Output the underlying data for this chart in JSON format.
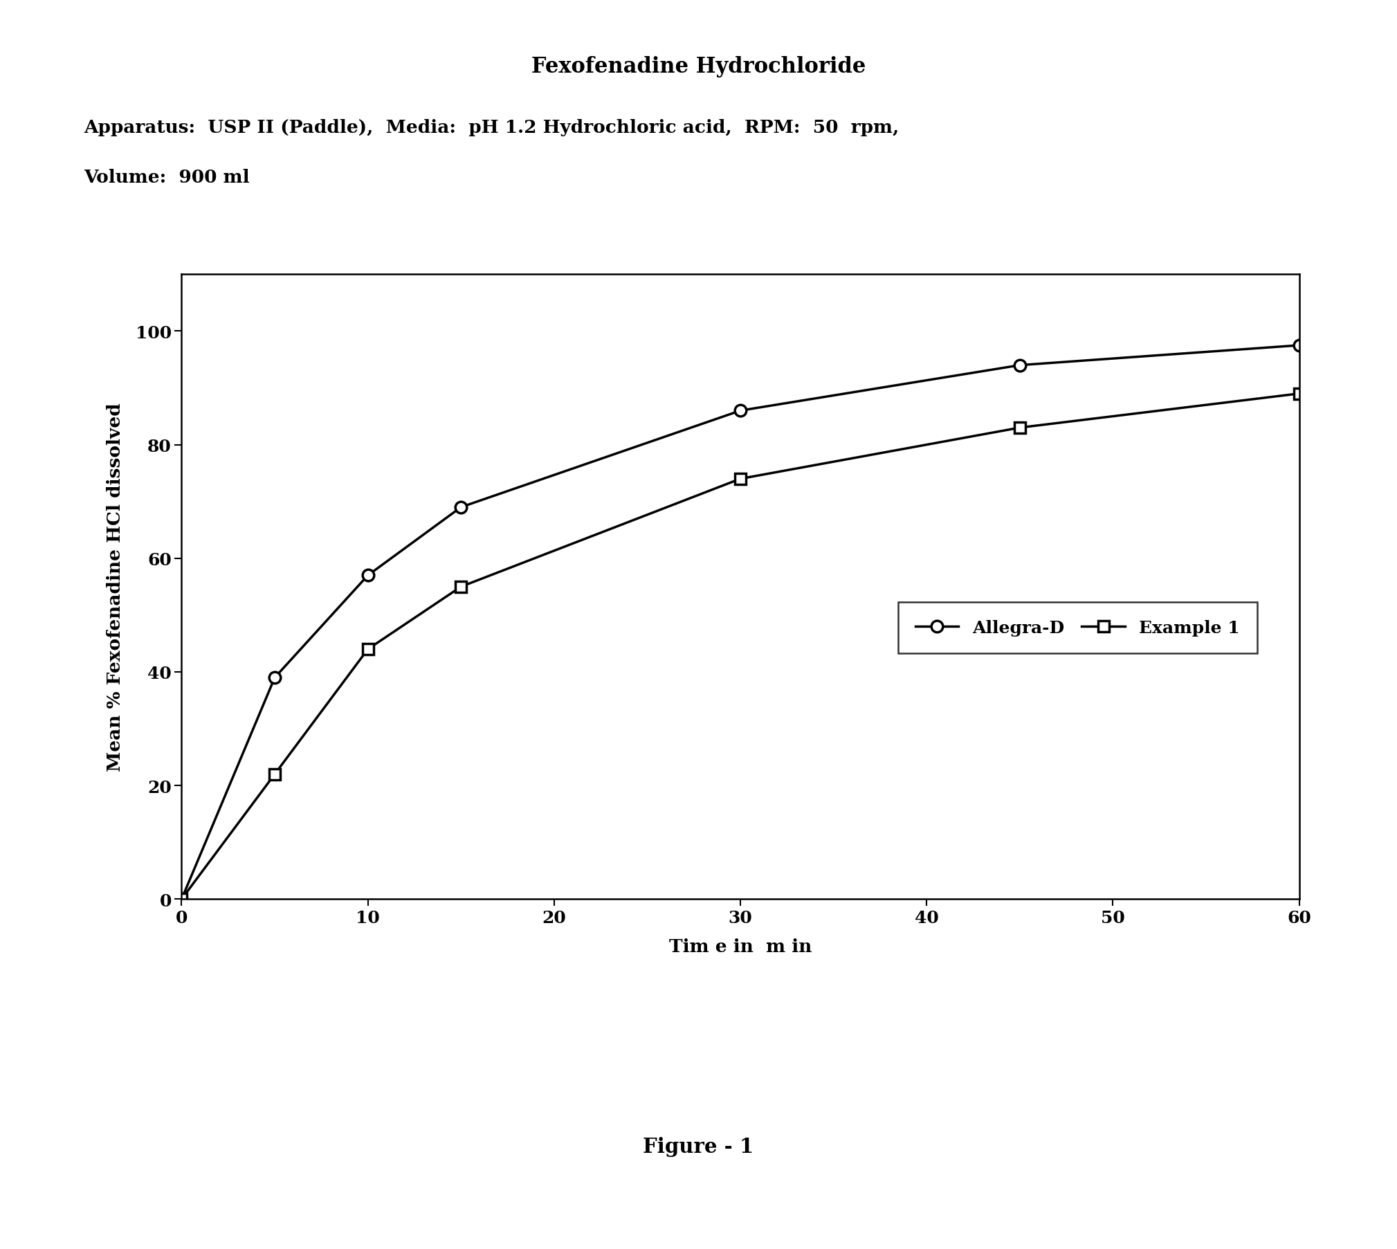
{
  "title": "Fexofenadine Hydrochloride",
  "subtitle_line1": "Apparatus:  USP II (Paddle),  Media:  pH 1.2 Hydrochloric acid,  RPM:  50  rpm,",
  "subtitle_line2": "Volume:  900 ml",
  "xlabel": "Tim e in  m in",
  "ylabel": "Mean % Fexofenadine HCl dissolved",
  "figure_caption": "Figure - 1",
  "allegra_d_x": [
    0,
    5,
    10,
    15,
    30,
    45,
    60
  ],
  "allegra_d_y": [
    0,
    39,
    57,
    69,
    86,
    94,
    97.5
  ],
  "example1_x": [
    0,
    5,
    10,
    15,
    30,
    45,
    60
  ],
  "example1_y": [
    0,
    22,
    44,
    55,
    74,
    83,
    89
  ],
  "xlim": [
    0,
    60
  ],
  "ylim": [
    0,
    110
  ],
  "xticks": [
    0,
    10,
    20,
    30,
    40,
    50,
    60
  ],
  "yticks": [
    0,
    20,
    40,
    60,
    80,
    100
  ],
  "legend_labels": [
    "Allegra-D",
    "Example 1"
  ],
  "bg_color": "#ffffff",
  "line_color": "#000000",
  "title_fontsize": 22,
  "subtitle_fontsize": 19,
  "axis_label_fontsize": 19,
  "tick_fontsize": 18,
  "legend_fontsize": 18,
  "caption_fontsize": 21
}
